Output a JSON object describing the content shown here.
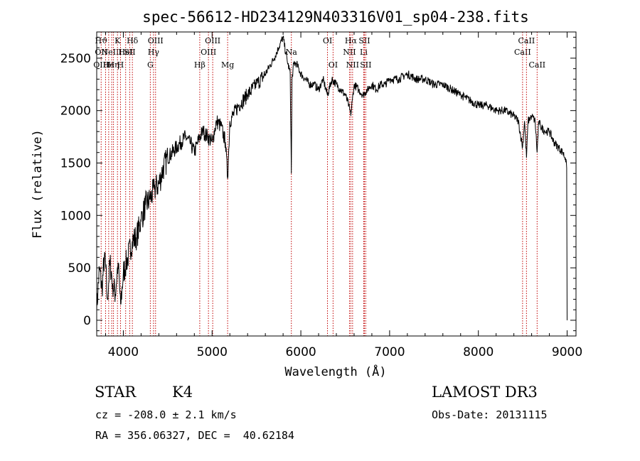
{
  "chart_data": {
    "type": "line",
    "title": "spec-56612-HD234129N403316V01_sp04-238.fits",
    "xlabel": "Wavelength (Å)",
    "ylabel": "Flux (relative)",
    "xlim": [
      3700,
      9100
    ],
    "ylim": [
      -150,
      2750
    ],
    "xticks": [
      4000,
      5000,
      6000,
      7000,
      8000,
      9000
    ],
    "yticks": [
      0,
      500,
      1000,
      1500,
      2000,
      2500
    ],
    "grid": false,
    "series": [
      {
        "name": "spectrum",
        "x": [
          3700,
          3730,
          3760,
          3790,
          3820,
          3850,
          3880,
          3910,
          3940,
          3970,
          4000,
          4050,
          4100,
          4150,
          4200,
          4250,
          4300,
          4350,
          4400,
          4450,
          4500,
          4550,
          4600,
          4650,
          4700,
          4750,
          4800,
          4860,
          4900,
          4950,
          5000,
          5050,
          5100,
          5150,
          5175,
          5200,
          5300,
          5400,
          5500,
          5600,
          5700,
          5750,
          5800,
          5830,
          5850,
          5870,
          5880,
          5893,
          5900,
          5920,
          5950,
          6000,
          6050,
          6100,
          6150,
          6200,
          6250,
          6300,
          6350,
          6400,
          6450,
          6500,
          6540,
          6563,
          6580,
          6600,
          6650,
          6700,
          6750,
          6800,
          6850,
          6900,
          6950,
          7000,
          7100,
          7200,
          7300,
          7400,
          7500,
          7600,
          7700,
          7800,
          7900,
          8000,
          8100,
          8200,
          8300,
          8400,
          8450,
          8498,
          8520,
          8542,
          8560,
          8600,
          8640,
          8662,
          8680,
          8700,
          8750,
          8800,
          8850,
          8900,
          8950,
          8980,
          8995,
          9000
        ],
        "values": [
          100,
          500,
          300,
          650,
          200,
          550,
          350,
          250,
          550,
          150,
          450,
          600,
          750,
          800,
          950,
          1100,
          1150,
          1250,
          1300,
          1450,
          1550,
          1600,
          1650,
          1700,
          1750,
          1700,
          1600,
          1750,
          1800,
          1750,
          1700,
          1900,
          1850,
          1700,
          1350,
          1900,
          2050,
          2150,
          2250,
          2350,
          2500,
          2600,
          2700,
          2550,
          2450,
          2400,
          2350,
          1400,
          2300,
          2450,
          2450,
          2350,
          2300,
          2250,
          2250,
          2200,
          2300,
          2150,
          2300,
          2250,
          2200,
          2150,
          2050,
          1950,
          2100,
          2250,
          2200,
          2150,
          2200,
          2250,
          2200,
          2250,
          2250,
          2300,
          2300,
          2350,
          2300,
          2300,
          2250,
          2250,
          2200,
          2150,
          2100,
          2050,
          2050,
          2000,
          2000,
          1950,
          1900,
          1650,
          1900,
          1550,
          1900,
          1950,
          1900,
          1600,
          1900,
          1850,
          1800,
          1800,
          1700,
          1650,
          1600,
          1550,
          1450,
          0
        ]
      }
    ],
    "line_markers": [
      {
        "wavelength": 3750,
        "labels": [
          {
            "text": "Hϑ",
            "row": 0
          },
          {
            "text": "OII",
            "row": 1
          },
          {
            "text": "OIII",
            "row": 2
          }
        ]
      },
      {
        "wavelength": 3800,
        "labels": []
      },
      {
        "wavelength": 3835,
        "labels": [
          {
            "text": "He",
            "row": 2
          }
        ]
      },
      {
        "wavelength": 3869,
        "labels": [
          {
            "text": "NeIII",
            "row": 1
          }
        ]
      },
      {
        "wavelength": 3889,
        "labels": [
          {
            "text": "Hη",
            "row": 2
          }
        ]
      },
      {
        "wavelength": 3934,
        "labels": [
          {
            "text": "K",
            "row": 0
          }
        ]
      },
      {
        "wavelength": 3968,
        "labels": [
          {
            "text": "H",
            "row": 2
          }
        ]
      },
      {
        "wavelength": 4026,
        "labels": [
          {
            "text": "HeI",
            "row": 1
          }
        ]
      },
      {
        "wavelength": 4072,
        "labels": [
          {
            "text": "SII",
            "row": 1
          }
        ]
      },
      {
        "wavelength": 4102,
        "labels": [
          {
            "text": "Hδ",
            "row": 0
          }
        ]
      },
      {
        "wavelength": 4304,
        "labels": [
          {
            "text": "G",
            "row": 2
          }
        ]
      },
      {
        "wavelength": 4340,
        "labels": [
          {
            "text": "Hγ",
            "row": 1
          }
        ]
      },
      {
        "wavelength": 4363,
        "labels": [
          {
            "text": "OIII",
            "row": 0
          }
        ]
      },
      {
        "wavelength": 4861,
        "labels": [
          {
            "text": "Hβ",
            "row": 2
          }
        ]
      },
      {
        "wavelength": 4959,
        "labels": [
          {
            "text": "OIII",
            "row": 1
          }
        ]
      },
      {
        "wavelength": 5007,
        "labels": [
          {
            "text": "OIII",
            "row": 0
          }
        ]
      },
      {
        "wavelength": 5175,
        "labels": [
          {
            "text": "Mg",
            "row": 2
          }
        ]
      },
      {
        "wavelength": 5893,
        "labels": [
          {
            "text": "Na",
            "row": 1
          }
        ]
      },
      {
        "wavelength": 6300,
        "labels": [
          {
            "text": "OI",
            "row": 0
          }
        ]
      },
      {
        "wavelength": 6363,
        "labels": [
          {
            "text": "OI",
            "row": 2
          }
        ]
      },
      {
        "wavelength": 6548,
        "labels": [
          {
            "text": "NII",
            "row": 1
          }
        ]
      },
      {
        "wavelength": 6563,
        "labels": [
          {
            "text": "Hα",
            "row": 0
          }
        ]
      },
      {
        "wavelength": 6583,
        "labels": [
          {
            "text": "NII",
            "row": 2
          }
        ]
      },
      {
        "wavelength": 6708,
        "labels": [
          {
            "text": "Li",
            "row": 1
          }
        ]
      },
      {
        "wavelength": 6716,
        "labels": [
          {
            "text": "SII",
            "row": 0
          }
        ]
      },
      {
        "wavelength": 6731,
        "labels": [
          {
            "text": "SII",
            "row": 2
          }
        ]
      },
      {
        "wavelength": 8498,
        "labels": [
          {
            "text": "CaII",
            "row": 1
          }
        ]
      },
      {
        "wavelength": 8542,
        "labels": [
          {
            "text": "CaII",
            "row": 0
          }
        ]
      },
      {
        "wavelength": 8662,
        "labels": [
          {
            "text": "CaII",
            "row": 2
          }
        ]
      }
    ]
  },
  "info": {
    "object_class": "STAR",
    "subclass": "K4",
    "survey": "LAMOST DR3",
    "cz": "cz = -208.0 ± 2.1 km/s",
    "obs_date": "Obs-Date: 20131115",
    "coords": "RA = 356.06327, DEC =  40.62184"
  },
  "colors": {
    "axis": "#000000",
    "spectrum": "#000000",
    "marker": "#c00000"
  }
}
